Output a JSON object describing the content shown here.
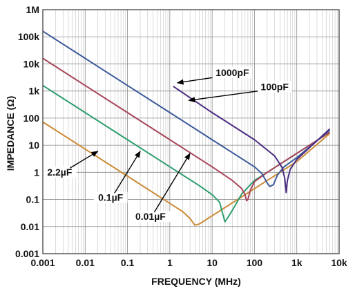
{
  "chart_data": {
    "type": "line",
    "xlabel": "FREQUENCY (MHz)",
    "ylabel": "IMPEDANCE (Ω)",
    "x_scale": "log",
    "y_scale": "log",
    "xlim": [
      0.001,
      10000
    ],
    "ylim": [
      0.001,
      1000000
    ],
    "grid": true,
    "x_ticks": [
      "0.001",
      "0.01",
      "0.1",
      "1",
      "10",
      "100",
      "1k",
      "10k"
    ],
    "y_ticks": [
      "0.001",
      "0.01",
      "0.1",
      "1",
      "10",
      "100",
      "1k",
      "10k",
      "100k",
      "1M"
    ],
    "series": [
      {
        "name": "2.2µF",
        "color": "#cc8a36",
        "x": [
          0.001,
          0.01,
          0.1,
          1,
          2,
          3,
          3.9,
          5,
          10,
          30,
          100,
          300,
          1000,
          6000
        ],
        "y": [
          72,
          7.2,
          0.72,
          0.072,
          0.036,
          0.02,
          0.0112,
          0.0125,
          0.025,
          0.075,
          0.25,
          0.75,
          2.5,
          27
        ]
      },
      {
        "name": "0.1µF",
        "color": "#2e9e6e",
        "x": [
          0.001,
          0.01,
          0.1,
          1,
          5,
          10,
          15,
          20,
          25,
          30,
          50,
          100,
          300,
          1000,
          6000
        ],
        "y": [
          1600,
          160,
          16,
          1.6,
          0.32,
          0.15,
          0.08,
          0.015,
          0.025,
          0.04,
          0.16,
          0.5,
          1.5,
          5,
          30
        ]
      },
      {
        "name": "0.01µF",
        "color": "#a8455a",
        "x": [
          0.001,
          0.01,
          0.1,
          1,
          10,
          30,
          50,
          60,
          65,
          70,
          80,
          100,
          200,
          1000,
          6000
        ],
        "y": [
          16000,
          1600,
          160,
          16,
          1.6,
          0.5,
          0.25,
          0.15,
          0.09,
          0.1,
          0.22,
          0.45,
          1,
          5,
          30
        ]
      },
      {
        "name": "1000pF",
        "color": "#3b5a9a",
        "x": [
          0.001,
          0.01,
          0.1,
          1,
          10,
          100,
          150,
          200,
          230,
          280,
          350,
          500,
          1000,
          6000
        ],
        "y": [
          160000,
          16000,
          1600,
          160,
          16,
          1.6,
          0.9,
          0.4,
          0.3,
          0.35,
          0.8,
          1.6,
          3.5,
          36
        ]
      },
      {
        "name": "100pF",
        "color": "#4a2d82",
        "x": [
          1.2,
          10,
          100,
          300,
          450,
          520,
          560,
          600,
          700,
          1000,
          6000
        ],
        "y": [
          1500,
          160,
          16,
          4,
          1.5,
          0.6,
          0.18,
          0.5,
          1.3,
          3,
          40
        ]
      }
    ],
    "annotations": [
      {
        "label": "1000pF",
        "series": "1000pF",
        "text_x": 30,
        "text_y": 4000,
        "arrow_x": 1.5,
        "arrow_y": 2000
      },
      {
        "label": "100pF",
        "series": "100pF",
        "text_x": 300,
        "text_y": 1200,
        "arrow_x": 2.8,
        "arrow_y": 450
      },
      {
        "label": "2.2µF",
        "series": "2.2µF",
        "text_x": 0.0025,
        "text_y": 0.85,
        "arrow_x": 0.02,
        "arrow_y": 6
      },
      {
        "label": "0.1µF",
        "series": "0.1µF",
        "text_x": 0.04,
        "text_y": 0.1,
        "arrow_x": 0.2,
        "arrow_y": 6
      },
      {
        "label": "0.01µF",
        "series": "0.01µF",
        "text_x": 0.35,
        "text_y": 0.02,
        "arrow_x": 3,
        "arrow_y": 5
      }
    ]
  }
}
